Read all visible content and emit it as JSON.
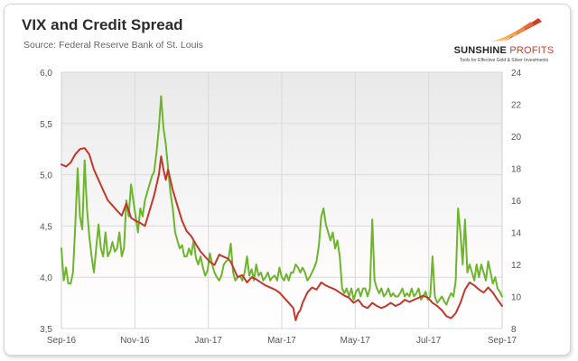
{
  "logo": {
    "name_bold": "SUNSHINE",
    "name_light": "PROFITS",
    "tagline": "Tools for Effective Gold & Silver Investments"
  },
  "chart_data": {
    "type": "line",
    "title": "VIX and Credit Spread",
    "subtitle": "Source: Federal Reserve Bank of St. Louis",
    "x_ticks": [
      "Sep-16",
      "Nov-16",
      "Jan-17",
      "Mar-17",
      "May-17",
      "Jul-17",
      "Sep-17"
    ],
    "x_range": [
      0,
      380
    ],
    "y_left": {
      "range": [
        3.5,
        6.0
      ],
      "ticks": [
        "3,5",
        "4,0",
        "4,5",
        "5,0",
        "5,5",
        "6,0"
      ]
    },
    "y_right": {
      "range": [
        8,
        24
      ],
      "ticks": [
        "8",
        "10",
        "12",
        "14",
        "16",
        "18",
        "20",
        "22",
        "24"
      ]
    },
    "grid": true,
    "series": [
      {
        "color": "#6cb52d",
        "axis": "right",
        "points": [
          [
            0,
            13.0
          ],
          [
            2,
            11.0
          ],
          [
            4,
            11.8
          ],
          [
            6,
            10.8
          ],
          [
            8,
            10.8
          ],
          [
            10,
            11.5
          ],
          [
            12,
            14.5
          ],
          [
            14,
            18.0
          ],
          [
            16,
            15.0
          ],
          [
            18,
            14.2
          ],
          [
            20,
            18.5
          ],
          [
            22,
            15.5
          ],
          [
            24,
            13.8
          ],
          [
            26,
            12.5
          ],
          [
            28,
            11.5
          ],
          [
            30,
            13.0
          ],
          [
            32,
            14.5
          ],
          [
            34,
            13.0
          ],
          [
            36,
            12.5
          ],
          [
            38,
            14.0
          ],
          [
            40,
            12.5
          ],
          [
            42,
            12.8
          ],
          [
            44,
            13.4
          ],
          [
            46,
            12.8
          ],
          [
            48,
            13.0
          ],
          [
            50,
            14.0
          ],
          [
            52,
            12.5
          ],
          [
            54,
            13.0
          ],
          [
            56,
            16.0
          ],
          [
            58,
            15.0
          ],
          [
            60,
            17.0
          ],
          [
            62,
            16.0
          ],
          [
            64,
            15.0
          ],
          [
            66,
            14.0
          ],
          [
            68,
            15.5
          ],
          [
            70,
            15.0
          ],
          [
            72,
            16.0
          ],
          [
            74,
            16.5
          ],
          [
            76,
            17.0
          ],
          [
            78,
            17.5
          ],
          [
            80,
            17.8
          ],
          [
            82,
            19.0
          ],
          [
            84,
            20.5
          ],
          [
            86,
            22.5
          ],
          [
            88,
            20.5
          ],
          [
            90,
            19.5
          ],
          [
            92,
            18.0
          ],
          [
            94,
            16.5
          ],
          [
            96,
            15.5
          ],
          [
            98,
            14.0
          ],
          [
            100,
            13.5
          ],
          [
            102,
            13.0
          ],
          [
            104,
            13.2
          ],
          [
            106,
            12.5
          ],
          [
            108,
            12.5
          ],
          [
            110,
            13.0
          ],
          [
            112,
            12.6
          ],
          [
            114,
            13.5
          ],
          [
            116,
            12.4
          ],
          [
            118,
            12.0
          ],
          [
            120,
            12.5
          ],
          [
            122,
            11.8
          ],
          [
            124,
            11.3
          ],
          [
            126,
            11.6
          ],
          [
            128,
            12.7
          ],
          [
            130,
            12.0
          ],
          [
            132,
            11.5
          ],
          [
            134,
            11.2
          ],
          [
            136,
            11.0
          ],
          [
            138,
            11.3
          ],
          [
            140,
            12.0
          ],
          [
            142,
            12.2
          ],
          [
            144,
            12.3
          ],
          [
            146,
            13.3
          ],
          [
            148,
            11.5
          ],
          [
            150,
            11.0
          ],
          [
            152,
            11.2
          ],
          [
            154,
            11.3
          ],
          [
            156,
            11.0
          ],
          [
            158,
            11.5
          ],
          [
            160,
            12.5
          ],
          [
            162,
            11.3
          ],
          [
            164,
            11.7
          ],
          [
            166,
            11.0
          ],
          [
            168,
            12.0
          ],
          [
            170,
            11.3
          ],
          [
            172,
            11.5
          ],
          [
            174,
            11.0
          ],
          [
            176,
            11.2
          ],
          [
            178,
            11.5
          ],
          [
            180,
            11.0
          ],
          [
            182,
            11.2
          ],
          [
            184,
            11.3
          ],
          [
            186,
            11.0
          ],
          [
            188,
            11.8
          ],
          [
            190,
            11.2
          ],
          [
            192,
            11.0
          ],
          [
            194,
            11.4
          ],
          [
            196,
            11.0
          ],
          [
            198,
            11.5
          ],
          [
            200,
            11.5
          ],
          [
            202,
            12.0
          ],
          [
            204,
            11.8
          ],
          [
            206,
            11.5
          ],
          [
            208,
            11.8
          ],
          [
            210,
            11.5
          ],
          [
            212,
            11.0
          ],
          [
            214,
            11.2
          ],
          [
            216,
            11.5
          ],
          [
            218,
            11.8
          ],
          [
            220,
            12.2
          ],
          [
            222,
            13.2
          ],
          [
            224,
            15.0
          ],
          [
            226,
            15.5
          ],
          [
            228,
            14.5
          ],
          [
            230,
            14.0
          ],
          [
            232,
            13.5
          ],
          [
            234,
            14.0
          ],
          [
            236,
            13.0
          ],
          [
            238,
            13.5
          ],
          [
            240,
            12.5
          ],
          [
            242,
            10.5
          ],
          [
            244,
            10.2
          ],
          [
            246,
            10.5
          ],
          [
            248,
            10.0
          ],
          [
            250,
            10.5
          ],
          [
            252,
            9.8
          ],
          [
            254,
            10.3
          ],
          [
            256,
            10.5
          ],
          [
            258,
            10.0
          ],
          [
            260,
            10.5
          ],
          [
            262,
            10.5
          ],
          [
            264,
            10.0
          ],
          [
            266,
            10.5
          ],
          [
            268,
            14.8
          ],
          [
            270,
            11.0
          ],
          [
            272,
            10.5
          ],
          [
            274,
            10.2
          ],
          [
            276,
            10.5
          ],
          [
            278,
            10.0
          ],
          [
            280,
            10.2
          ],
          [
            282,
            10.5
          ],
          [
            284,
            10.0
          ],
          [
            286,
            10.2
          ],
          [
            288,
            10.0
          ],
          [
            290,
            10.0
          ],
          [
            292,
            10.2
          ],
          [
            294,
            10.5
          ],
          [
            296,
            10.0
          ],
          [
            298,
            10.2
          ],
          [
            300,
            10.0
          ],
          [
            302,
            10.5
          ],
          [
            304,
            10.0
          ],
          [
            306,
            10.2
          ],
          [
            308,
            10.5
          ],
          [
            310,
            9.8
          ],
          [
            312,
            10.0
          ],
          [
            314,
            10.3
          ],
          [
            316,
            9.8
          ],
          [
            318,
            10.0
          ],
          [
            320,
            12.5
          ],
          [
            322,
            10.0
          ],
          [
            324,
            9.6
          ],
          [
            326,
            9.8
          ],
          [
            328,
            10.0
          ],
          [
            330,
            9.7
          ],
          [
            332,
            9.5
          ],
          [
            334,
            9.9
          ],
          [
            336,
            10.2
          ],
          [
            338,
            10.0
          ],
          [
            340,
            11.0
          ],
          [
            342,
            15.5
          ],
          [
            344,
            14.0
          ],
          [
            346,
            12.0
          ],
          [
            348,
            14.8
          ],
          [
            350,
            11.5
          ],
          [
            352,
            12.0
          ],
          [
            354,
            11.5
          ],
          [
            356,
            11.0
          ],
          [
            358,
            12.0
          ],
          [
            360,
            11.2
          ],
          [
            362,
            12.0
          ],
          [
            364,
            11.5
          ],
          [
            366,
            11.0
          ],
          [
            368,
            12.2
          ],
          [
            370,
            11.5
          ],
          [
            372,
            10.8
          ],
          [
            374,
            11.2
          ],
          [
            376,
            10.5
          ],
          [
            378,
            10.3
          ],
          [
            380,
            10.0
          ]
        ]
      },
      {
        "color": "#c0392b",
        "axis": "left",
        "points": [
          [
            0,
            5.1
          ],
          [
            4,
            5.08
          ],
          [
            8,
            5.12
          ],
          [
            12,
            5.2
          ],
          [
            16,
            5.25
          ],
          [
            20,
            5.26
          ],
          [
            24,
            5.2
          ],
          [
            28,
            5.05
          ],
          [
            32,
            4.95
          ],
          [
            36,
            4.85
          ],
          [
            40,
            4.75
          ],
          [
            44,
            4.7
          ],
          [
            48,
            4.65
          ],
          [
            52,
            4.6
          ],
          [
            56,
            4.72
          ],
          [
            60,
            4.58
          ],
          [
            64,
            4.55
          ],
          [
            68,
            4.53
          ],
          [
            72,
            4.5
          ],
          [
            76,
            4.65
          ],
          [
            80,
            4.8
          ],
          [
            84,
            5.0
          ],
          [
            86,
            5.18
          ],
          [
            88,
            5.05
          ],
          [
            90,
            4.95
          ],
          [
            92,
            5.05
          ],
          [
            96,
            4.85
          ],
          [
            100,
            4.7
          ],
          [
            104,
            4.55
          ],
          [
            108,
            4.45
          ],
          [
            112,
            4.4
          ],
          [
            116,
            4.32
          ],
          [
            120,
            4.25
          ],
          [
            124,
            4.2
          ],
          [
            128,
            4.15
          ],
          [
            132,
            4.12
          ],
          [
            136,
            4.22
          ],
          [
            140,
            4.2
          ],
          [
            144,
            4.18
          ],
          [
            146,
            4.15
          ],
          [
            150,
            4.05
          ],
          [
            152,
            4.0
          ],
          [
            156,
            4.02
          ],
          [
            160,
            3.95
          ],
          [
            164,
            4.0
          ],
          [
            168,
            3.98
          ],
          [
            172,
            3.95
          ],
          [
            176,
            3.92
          ],
          [
            180,
            3.9
          ],
          [
            184,
            3.88
          ],
          [
            188,
            3.85
          ],
          [
            192,
            3.8
          ],
          [
            196,
            3.75
          ],
          [
            200,
            3.7
          ],
          [
            202,
            3.58
          ],
          [
            204,
            3.65
          ],
          [
            206,
            3.68
          ],
          [
            208,
            3.75
          ],
          [
            212,
            3.85
          ],
          [
            216,
            3.9
          ],
          [
            220,
            3.88
          ],
          [
            224,
            3.95
          ],
          [
            228,
            3.92
          ],
          [
            232,
            3.9
          ],
          [
            236,
            3.88
          ],
          [
            240,
            3.85
          ],
          [
            244,
            3.82
          ],
          [
            248,
            3.8
          ],
          [
            252,
            3.75
          ],
          [
            256,
            3.78
          ],
          [
            260,
            3.72
          ],
          [
            264,
            3.7
          ],
          [
            268,
            3.75
          ],
          [
            272,
            3.72
          ],
          [
            276,
            3.7
          ],
          [
            280,
            3.72
          ],
          [
            284,
            3.75
          ],
          [
            288,
            3.72
          ],
          [
            292,
            3.74
          ],
          [
            296,
            3.78
          ],
          [
            300,
            3.76
          ],
          [
            304,
            3.78
          ],
          [
            308,
            3.8
          ],
          [
            312,
            3.82
          ],
          [
            316,
            3.8
          ],
          [
            320,
            3.75
          ],
          [
            324,
            3.72
          ],
          [
            328,
            3.68
          ],
          [
            332,
            3.62
          ],
          [
            336,
            3.6
          ],
          [
            340,
            3.65
          ],
          [
            344,
            3.75
          ],
          [
            348,
            3.88
          ],
          [
            352,
            3.95
          ],
          [
            356,
            3.92
          ],
          [
            360,
            3.88
          ],
          [
            364,
            3.85
          ],
          [
            368,
            3.9
          ],
          [
            372,
            3.85
          ],
          [
            376,
            3.78
          ],
          [
            380,
            3.72
          ]
        ]
      }
    ]
  }
}
